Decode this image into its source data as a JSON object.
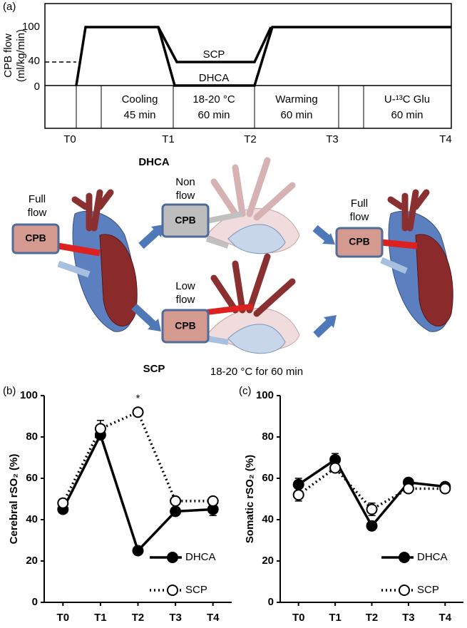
{
  "panel_a": {
    "label": "(a)",
    "y_label": [
      "CPB flow",
      "(ml/kg/min)"
    ],
    "yticks": [
      100,
      40,
      0
    ],
    "trace_labels": [
      "SCP",
      "DHCA"
    ],
    "phases": [
      [
        "Cooling",
        "45 min"
      ],
      [
        "18-20 °C",
        "60 min"
      ],
      [
        "Warming",
        "60 min"
      ],
      [
        "U-¹³C Glu",
        "60 min"
      ]
    ],
    "timepoints": [
      "T0",
      "T1",
      "T2",
      "T3",
      "T4"
    ]
  },
  "illustration": {
    "dhca": "DHCA",
    "scp": "SCP",
    "non_flow": [
      "Non",
      "flow"
    ],
    "low_flow": [
      "Low",
      "flow"
    ],
    "full_flow_left": [
      "Full",
      "flow"
    ],
    "full_flow_right": [
      "Full",
      "flow"
    ],
    "temperature": "18-20 °C for 60 min",
    "cpb": [
      "CPB",
      "CPB",
      "CPB",
      "CPB"
    ]
  },
  "chart_data": [
    {
      "type": "line",
      "panel": "(b)",
      "y_label": "Cerebral rSO₂ (%)",
      "categories": [
        "T0",
        "T1",
        "T2",
        "T3",
        "T4"
      ],
      "ylim": [
        0,
        100
      ],
      "yticks": [
        0,
        20,
        40,
        60,
        80,
        100
      ],
      "legend": "lower right",
      "series": [
        {
          "name": "DHCA",
          "color": "#000000",
          "marker": "filled",
          "dash": "solid",
          "values": [
            45,
            81,
            25,
            44,
            45
          ],
          "errors": [
            1,
            1,
            1,
            2,
            3
          ]
        },
        {
          "name": "SCP",
          "color": "#000000",
          "marker": "open",
          "dash": "dotted",
          "values": [
            48,
            84,
            92,
            49,
            49
          ],
          "errors": [
            2,
            4,
            1,
            1,
            1
          ]
        }
      ],
      "annotations": [
        {
          "text": "*",
          "x": "T2"
        }
      ]
    },
    {
      "type": "line",
      "panel": "(c)",
      "y_label": "Somatic rSO₂ (%)",
      "categories": [
        "T0",
        "T1",
        "T2",
        "T3",
        "T4"
      ],
      "ylim": [
        0,
        100
      ],
      "yticks": [
        0,
        20,
        40,
        60,
        80,
        100
      ],
      "legend": "lower right",
      "series": [
        {
          "name": "DHCA",
          "color": "#000000",
          "marker": "filled",
          "dash": "solid",
          "values": [
            57,
            69,
            37,
            58,
            56
          ],
          "errors": [
            3,
            3,
            2,
            2,
            1
          ]
        },
        {
          "name": "SCP",
          "color": "#000000",
          "marker": "open",
          "dash": "dotted",
          "values": [
            52,
            65,
            45,
            55,
            55
          ],
          "errors": [
            3,
            2,
            3,
            2,
            2
          ]
        }
      ]
    }
  ]
}
